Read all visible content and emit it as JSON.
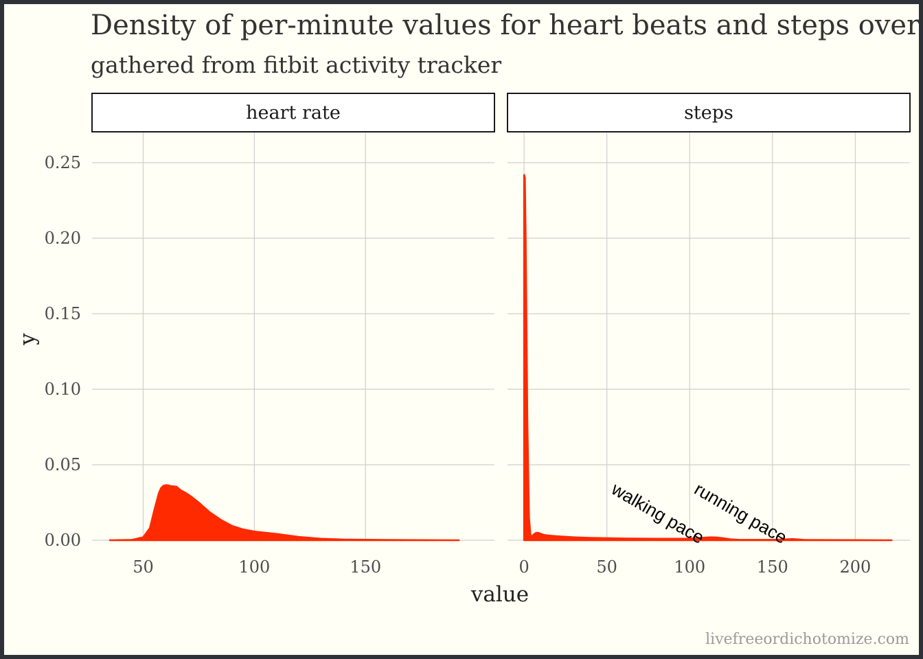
{
  "chart_data": {
    "type": "area",
    "title": "Density of per-minute values for heart beats and steps over tw",
    "subtitle": "gathered from fitbit activity tracker",
    "xlabel": "value",
    "ylabel": "y",
    "caption": "livefreeordichotomize.com",
    "fill_color": "#ff2a00",
    "grid": true,
    "ylim": [
      0,
      0.27
    ],
    "y_ticks": [
      0,
      0.05,
      0.1,
      0.15,
      0.2,
      0.25
    ],
    "y_tick_labels": [
      "0.00",
      "0.05",
      "0.10",
      "0.15",
      "0.20",
      "0.25"
    ],
    "panels": [
      {
        "strip": "heart rate",
        "xlim": [
          27,
          208
        ],
        "x_ticks": [
          50,
          100,
          150
        ],
        "x_tick_labels": [
          "50",
          "100",
          "150"
        ],
        "series": [
          {
            "x": [
              35,
              45,
              50,
              53,
              55,
              57,
              58,
              59,
              60,
              61,
              62,
              63,
              65,
              67,
              69,
              72,
              75,
              80,
              85,
              90,
              95,
              100,
              110,
              120,
              130,
              140,
              160,
              192
            ],
            "y": [
              0,
              0.0003,
              0.002,
              0.008,
              0.02,
              0.031,
              0.0345,
              0.036,
              0.0365,
              0.0365,
              0.036,
              0.0358,
              0.0355,
              0.033,
              0.0315,
              0.0285,
              0.025,
              0.0185,
              0.0135,
              0.0095,
              0.0072,
              0.0058,
              0.0042,
              0.0022,
              0.001,
              0.0005,
              0.0002,
              0
            ]
          }
        ],
        "annotations": []
      },
      {
        "strip": "steps",
        "xlim": [
          -10,
          233
        ],
        "x_ticks": [
          0,
          50,
          100,
          150,
          200
        ],
        "x_tick_labels": [
          "0",
          "50",
          "100",
          "150",
          "200"
        ],
        "series": [
          {
            "x": [
              0,
              0.5,
              1,
              2,
              3,
              4,
              5,
              6,
              7,
              8,
              9,
              10,
              12,
              15,
              20,
              30,
              40,
              60,
              80,
              100,
              105,
              110,
              113,
              116,
              120,
              125,
              130,
              150,
              158,
              162,
              165,
              170,
              200,
              222
            ],
            "y": [
              0.242,
              0.24,
              0.2,
              0.08,
              0.015,
              0.002,
              0.003,
              0.004,
              0.0048,
              0.005,
              0.0048,
              0.0043,
              0.0036,
              0.0031,
              0.0027,
              0.002,
              0.0016,
              0.0012,
              0.001,
              0.0011,
              0.0014,
              0.0018,
              0.002,
              0.0019,
              0.0014,
              0.0006,
              0.0003,
              0.0003,
              0.0006,
              0.0008,
              0.0006,
              0.0002,
              0.0001,
              0
            ]
          }
        ],
        "annotations": [
          {
            "text": "walking pace",
            "x": 52,
            "y": 0.0315,
            "angle": 30
          },
          {
            "text": "running pace",
            "x": 102,
            "y": 0.0315,
            "angle": 30
          }
        ]
      }
    ]
  }
}
